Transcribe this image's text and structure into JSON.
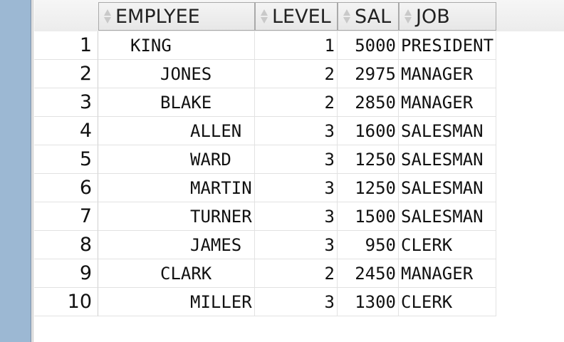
{
  "columns": [
    {
      "key": "EMPLYEE",
      "label": "EMPLYEE"
    },
    {
      "key": "LEVEL",
      "label": "LEVEL"
    },
    {
      "key": "SAL",
      "label": "SAL"
    },
    {
      "key": "JOB",
      "label": "JOB"
    }
  ],
  "rows": [
    {
      "num": "1",
      "employee": "KING",
      "level": "1",
      "sal": "5000",
      "job": "PRESIDENT"
    },
    {
      "num": "2",
      "employee": "JONES",
      "level": "2",
      "sal": "2975",
      "job": "MANAGER"
    },
    {
      "num": "3",
      "employee": "BLAKE",
      "level": "2",
      "sal": "2850",
      "job": "MANAGER"
    },
    {
      "num": "4",
      "employee": "ALLEN",
      "level": "3",
      "sal": "1600",
      "job": "SALESMAN"
    },
    {
      "num": "5",
      "employee": "WARD",
      "level": "3",
      "sal": "1250",
      "job": "SALESMAN"
    },
    {
      "num": "6",
      "employee": "MARTIN",
      "level": "3",
      "sal": "1250",
      "job": "SALESMAN"
    },
    {
      "num": "7",
      "employee": "TURNER",
      "level": "3",
      "sal": "1500",
      "job": "SALESMAN"
    },
    {
      "num": "8",
      "employee": "JAMES",
      "level": "3",
      "sal": "950",
      "job": "CLERK"
    },
    {
      "num": "9",
      "employee": "CLARK",
      "level": "2",
      "sal": "2450",
      "job": "MANAGER"
    },
    {
      "num": "10",
      "employee": "MILLER",
      "level": "3",
      "sal": "1300",
      "job": "CLERK"
    }
  ]
}
